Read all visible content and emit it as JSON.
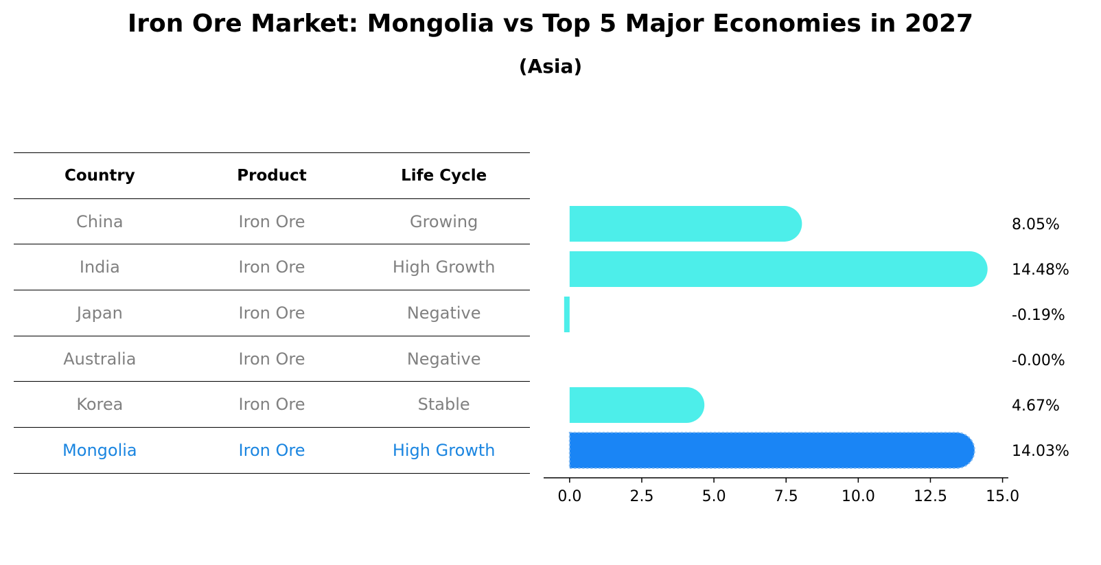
{
  "chart_data": {
    "type": "bar",
    "orientation": "horizontal",
    "title": "Iron Ore Market: Mongolia vs Top 5 Major Economies in 2027",
    "subtitle": "(Asia)",
    "xlim": [
      -0.9,
      15.2
    ],
    "xticks": [
      0.0,
      2.5,
      5.0,
      7.5,
      10.0,
      12.5,
      15.0
    ],
    "xtick_labels": [
      "0.0",
      "2.5",
      "5.0",
      "7.5",
      "10.0",
      "12.5",
      "15.0"
    ],
    "categories": [
      "China",
      "India",
      "Japan",
      "Australia",
      "Korea",
      "Mongolia"
    ],
    "values": [
      8.05,
      14.48,
      -0.19,
      -0.0,
      4.67,
      14.03
    ],
    "value_labels": [
      "8.05%",
      "14.48%",
      "-0.19%",
      "-0.00%",
      "4.67%",
      "14.03%"
    ],
    "highlight": "Mongolia",
    "colors": {
      "bar": "#4deeea",
      "highlight_bar": "#1a85f5"
    }
  },
  "table": {
    "headers": [
      "Country",
      "Product",
      "Life Cycle"
    ],
    "rows": [
      [
        "China",
        "Iron Ore",
        "Growing"
      ],
      [
        "India",
        "Iron Ore",
        "High Growth"
      ],
      [
        "Japan",
        "Iron Ore",
        "Negative"
      ],
      [
        "Australia",
        "Iron Ore",
        "Negative"
      ],
      [
        "Korea",
        "Iron Ore",
        "Stable"
      ],
      [
        "Mongolia",
        "Iron Ore",
        "High Growth"
      ]
    ],
    "highlight_color": "#1a85e0",
    "text_color": "#808080"
  }
}
